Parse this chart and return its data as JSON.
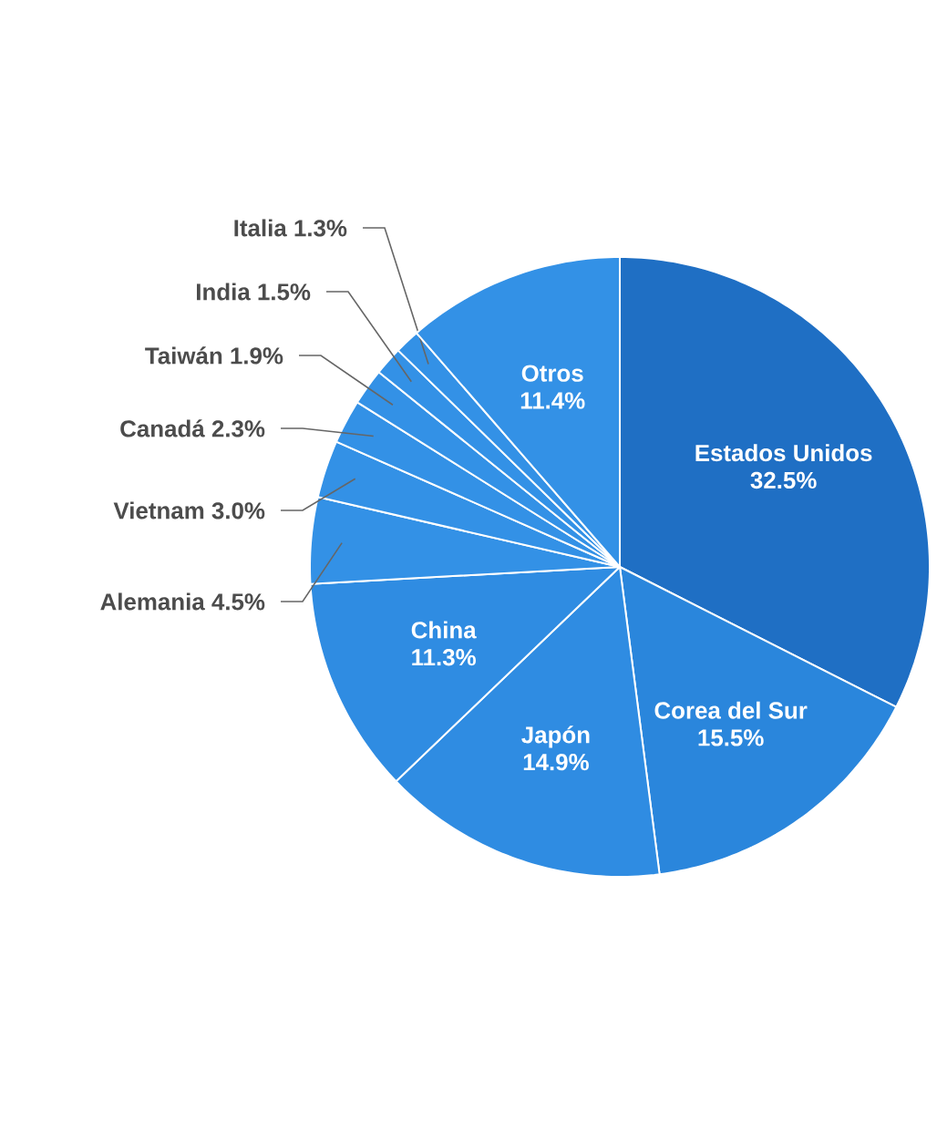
{
  "chart_data": {
    "type": "pie",
    "categories": [
      "Estados Unidos",
      "Corea del Sur",
      "Japón",
      "China",
      "Alemania",
      "Vietnam",
      "Canadá",
      "Taiwán",
      "India",
      "Italia",
      "Otros"
    ],
    "values": [
      32.5,
      15.5,
      14.9,
      11.3,
      4.5,
      3.0,
      2.3,
      1.9,
      1.5,
      1.3,
      11.4
    ],
    "value_labels": [
      "32.5%",
      "15.5%",
      "14.9%",
      "11.3%",
      "4.5%",
      "3.0%",
      "2.3%",
      "1.9%",
      "1.5%",
      "1.3%",
      "11.4%"
    ],
    "colors": [
      "#1f6fc4",
      "#2a86dc",
      "#2f8ce2",
      "#2f8ce2",
      "#3391e6",
      "#3391e6",
      "#3391e6",
      "#3391e6",
      "#3391e6",
      "#3391e6",
      "#3391e6"
    ]
  }
}
